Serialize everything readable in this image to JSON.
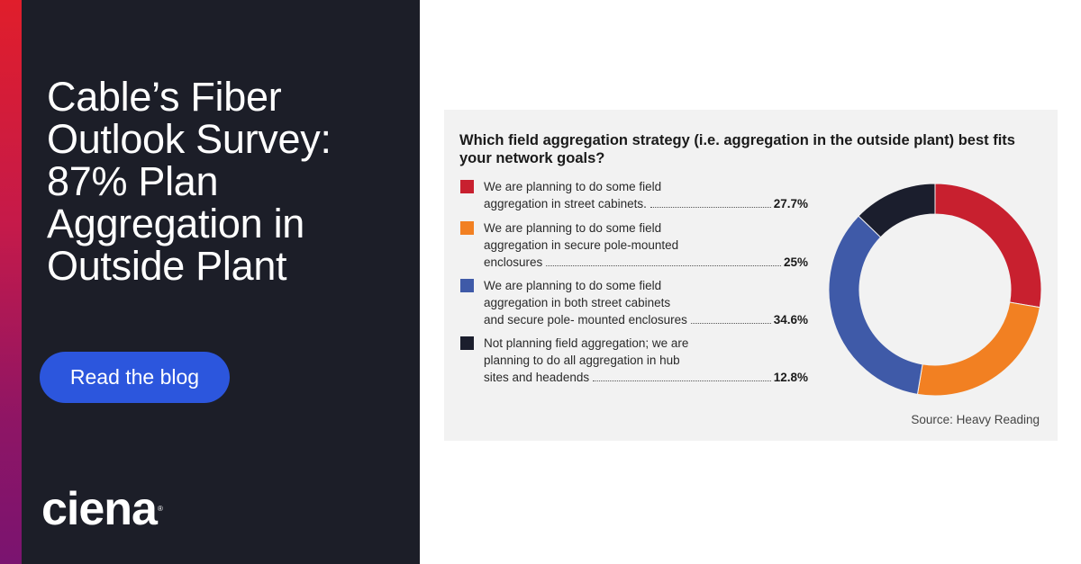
{
  "headline": {
    "lines": [
      "Cable’s Fiber",
      "Outlook Survey:",
      "87% Plan",
      "Aggregation in",
      "Outside Plant"
    ]
  },
  "cta": {
    "label": "Read the blog"
  },
  "logo": {
    "text": "ciena",
    "mark": "®"
  },
  "colors": {
    "panel": "#1c1e28",
    "button": "#2c56dd",
    "red": "#c8202f",
    "orange": "#f28022",
    "blue": "#3f5aa8",
    "navy": "#1b1e2d"
  },
  "chart_data": {
    "type": "pie",
    "title": "Which field aggregation strategy (i.e. aggregation in the outside plant) best fits your network goals?",
    "source": "Source: Heavy Reading",
    "legend_position": "left",
    "series": [
      {
        "lines": [
          "We are planning to do some field",
          "aggregation in street cabinets."
        ],
        "label": "We are planning to do some field aggregation in street cabinets.",
        "value": 27.7,
        "value_label": "27.7%",
        "color": "#c8202f"
      },
      {
        "lines": [
          "We are planning to do some field",
          "aggregation in secure pole-mounted",
          "enclosures"
        ],
        "label": "We are planning to do some field aggregation in secure pole-mounted enclosures",
        "value": 25,
        "value_label": "25%",
        "color": "#f28022"
      },
      {
        "lines": [
          "We are planning to do some field",
          "aggregation in both street cabinets",
          "and secure pole- mounted enclosures"
        ],
        "label": "We are planning to do some field aggregation in both street cabinets and secure pole- mounted enclosures",
        "value": 34.6,
        "value_label": "34.6%",
        "color": "#3f5aa8"
      },
      {
        "lines": [
          "Not planning field aggregation; we are",
          "planning to do all aggregation in hub",
          "sites and headends"
        ],
        "label": "Not planning field aggregation; we are planning to do all aggregation in hub sites and headends",
        "value": 12.8,
        "value_label": "12.8%",
        "color": "#1b1e2d"
      }
    ]
  }
}
